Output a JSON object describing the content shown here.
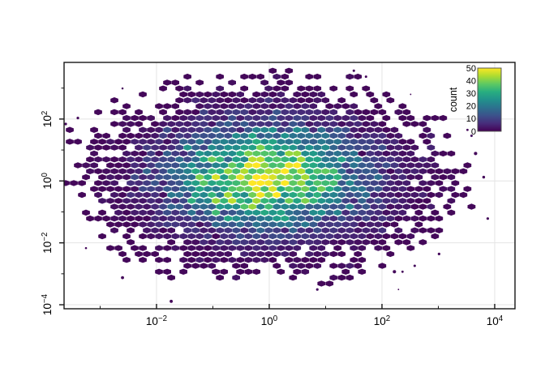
{
  "chart_data": {
    "type": "hexbin",
    "title": "",
    "xlabel": "",
    "ylabel": "",
    "x_scale": "log10",
    "y_scale": "log10",
    "x_axis": {
      "major_tick_exponents": [
        -2,
        0,
        2,
        4
      ],
      "minor_tick_exponents": [
        -3,
        -1,
        1,
        3
      ],
      "range_log10": [
        -3.64,
        4.36
      ]
    },
    "y_axis": {
      "major_tick_exponents": [
        -4,
        -2,
        0,
        2
      ],
      "minor_tick_exponents": [
        -3,
        -1,
        1,
        3
      ],
      "range_log10": [
        -4.13,
        3.83
      ]
    },
    "grid": {
      "show_major": true,
      "show_minor": false,
      "color": "#e4e4e4"
    },
    "legend": {
      "title": "count",
      "tick_values": [
        0,
        10,
        20,
        30,
        40,
        50
      ],
      "min": 0,
      "max": 50,
      "position": "top-right-inside"
    },
    "colormap": {
      "name": "viridis",
      "stops": [
        "#440154",
        "#472d7b",
        "#3b528b",
        "#2c728e",
        "#21918c",
        "#28ae80",
        "#5ec962",
        "#addc30",
        "#fde725"
      ]
    },
    "distribution": {
      "description": "single 2D Gaussian point cloud in log10-log10 space, hex-binned; counts 0-50",
      "center_log10": [
        -0.05,
        0.12
      ],
      "sigma_log10": [
        1.1,
        1.05
      ],
      "peak_count": 46,
      "count_cap": 50,
      "noise_sigma": 0.18,
      "outlier_lambda_threshold": 0.12,
      "seed": 1337
    },
    "hex_grid": {
      "binwidth_log10_x": 0.144,
      "binwidth_log10_y": 0.191
    }
  },
  "style": {
    "frame_color": "#161616",
    "tick_color": "#161616",
    "label_color": "#000000",
    "plot_background": "#ffffff",
    "colorbar_border": "#4d4d4d"
  }
}
